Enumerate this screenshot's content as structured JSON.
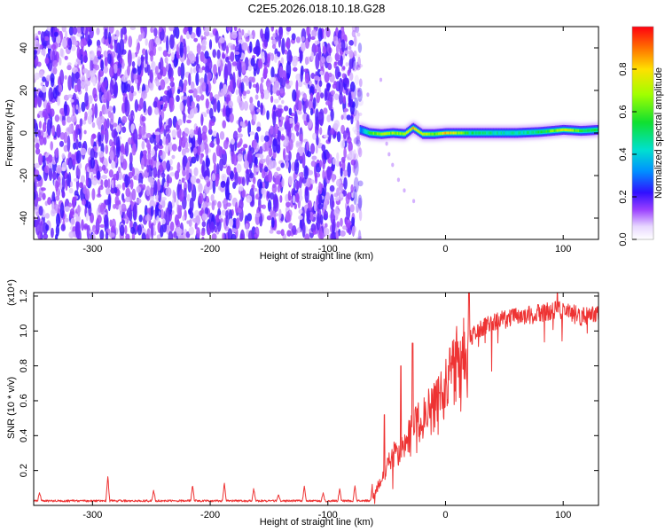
{
  "title": "C2E5.2026.018.10.18.G28",
  "chart_data": [
    {
      "type": "heatmap",
      "name": "spectrogram",
      "xlabel": "Height of straight line (km)",
      "ylabel": "Frequency (Hz)",
      "xlim": [
        -350,
        130
      ],
      "ylim": [
        -50,
        50
      ],
      "xticks": [
        -300,
        -200,
        -100,
        0,
        100
      ],
      "xtick_labels": [
        "-300",
        "-200",
        "-100",
        "0",
        "100"
      ],
      "yticks": [
        -40,
        -20,
        0,
        20,
        40
      ],
      "ytick_labels": [
        "-40",
        "-20",
        "0",
        "20",
        "40"
      ],
      "noise_region_x": [
        -350,
        -72
      ],
      "signal_line": {
        "x": [
          -73,
          -65,
          -55,
          -45,
          -35,
          -28,
          -20,
          -10,
          0,
          20,
          40,
          60,
          80,
          100,
          115,
          130
        ],
        "frequency": [
          1.5,
          0,
          -0.5,
          0,
          -0.5,
          2.5,
          -0.5,
          -0.5,
          0,
          0,
          0,
          0,
          0.5,
          1.5,
          1.0,
          1.5
        ],
        "amplitude": [
          0.3,
          0.55,
          0.7,
          0.65,
          0.7,
          0.8,
          0.75,
          0.6,
          0.85,
          0.5,
          0.45,
          0.45,
          0.5,
          0.75,
          0.55,
          0.5
        ]
      },
      "scatter_tail": [
        {
          "x": -50,
          "y": -5
        },
        {
          "x": -48,
          "y": -10
        },
        {
          "x": -45,
          "y": -15
        },
        {
          "x": -40,
          "y": -22
        },
        {
          "x": -35,
          "y": -27
        },
        {
          "x": -27,
          "y": -32
        },
        {
          "x": -55,
          "y": 25
        },
        {
          "x": -66,
          "y": 18
        }
      ]
    },
    {
      "type": "colorbar",
      "name": "amplitude-colorbar",
      "label": "Normalized spectral amplitude",
      "lim": [
        0,
        1
      ],
      "ticks": [
        0.0,
        0.2,
        0.4,
        0.6,
        0.8
      ],
      "tick_labels": [
        "0.0",
        "0.2",
        "0.4",
        "0.6",
        "0.8"
      ]
    },
    {
      "type": "line",
      "name": "snr",
      "color": "#ee3333",
      "xlabel": "Height of straight line (km)",
      "ylabel": "SNR (10 * v/v)",
      "yexp": "(x10⁴)",
      "xlim": [
        -350,
        130
      ],
      "ylim": [
        0,
        1.22
      ],
      "xticks": [
        -300,
        -200,
        -100,
        0,
        100
      ],
      "xtick_labels": [
        "-300",
        "-200",
        "-100",
        "0",
        "100"
      ],
      "yticks": [
        0.2,
        0.4,
        0.6,
        0.8,
        1.0,
        1.2
      ],
      "ytick_labels": [
        "0.2",
        "0.4",
        "0.6",
        "0.8",
        "1.0",
        "1.2"
      ],
      "baseline": 0.02,
      "spikes": [
        {
          "x": -345,
          "y": 0.07
        },
        {
          "x": -287,
          "y": 0.16
        },
        {
          "x": -248,
          "y": 0.08
        },
        {
          "x": -215,
          "y": 0.11
        },
        {
          "x": -188,
          "y": 0.12
        },
        {
          "x": -163,
          "y": 0.09
        },
        {
          "x": -142,
          "y": 0.06
        },
        {
          "x": -120,
          "y": 0.11
        },
        {
          "x": -104,
          "y": 0.07
        },
        {
          "x": -90,
          "y": 0.09
        },
        {
          "x": -77,
          "y": 0.11
        },
        {
          "x": -62,
          "y": 0.13
        }
      ],
      "trend": {
        "x": [
          -62,
          -55,
          -45,
          -35,
          -25,
          -15,
          -5,
          5,
          15,
          25,
          40,
          60,
          80,
          100,
          115,
          130
        ],
        "y": [
          0.04,
          0.15,
          0.28,
          0.35,
          0.45,
          0.52,
          0.62,
          0.75,
          0.88,
          1.0,
          1.05,
          1.08,
          1.1,
          1.12,
          1.08,
          1.1
        ]
      },
      "peaks": [
        {
          "x": -52,
          "y": 0.52
        },
        {
          "x": -38,
          "y": 0.8
        },
        {
          "x": -28,
          "y": 0.93
        },
        {
          "x": 20,
          "y": 1.22
        },
        {
          "x": 95,
          "y": 1.22
        }
      ]
    }
  ]
}
